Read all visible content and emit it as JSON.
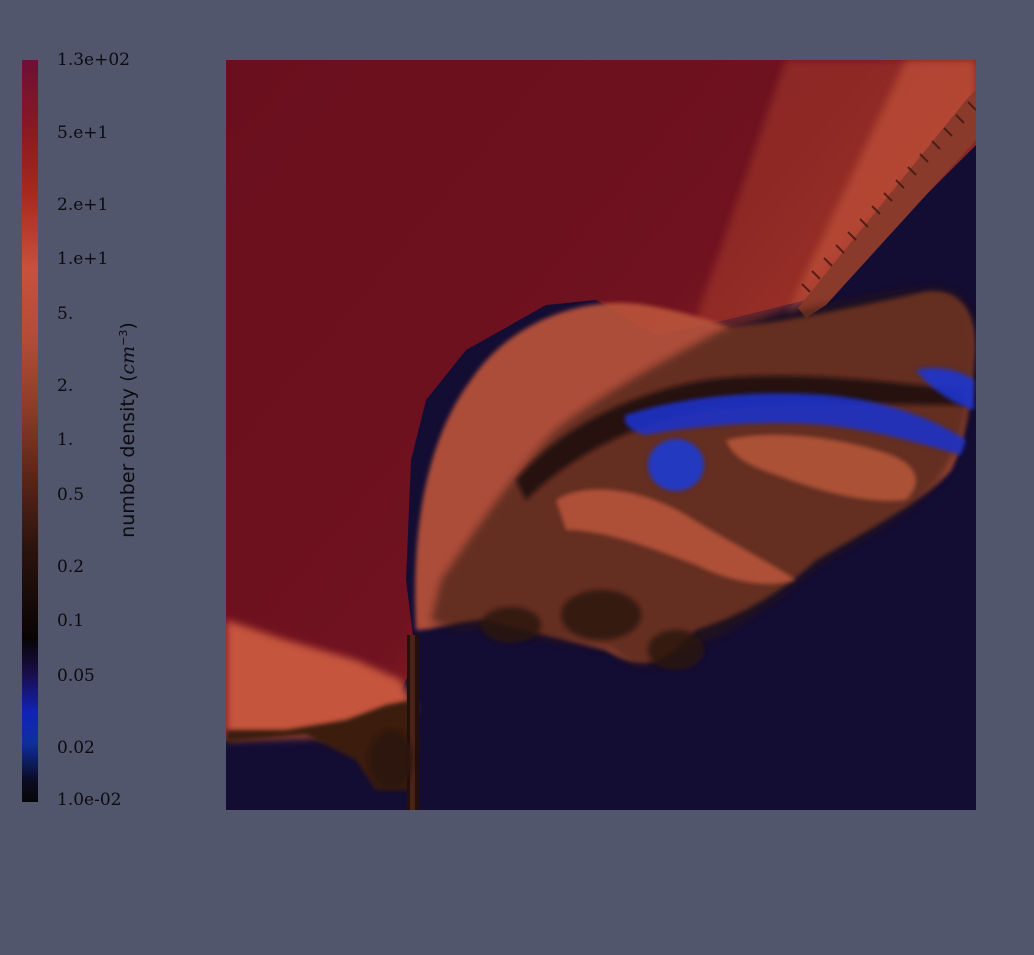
{
  "colorbar": {
    "title_text": "number density (",
    "title_unit": "cm",
    "title_exp": "−3",
    "title_close": ")",
    "ticks": [
      {
        "label": "1.3e+02"
      },
      {
        "label": "5.e+1"
      },
      {
        "label": "2.e+1"
      },
      {
        "label": "1.e+1"
      },
      {
        "label": "5."
      },
      {
        "label": "2."
      },
      {
        "label": "1."
      },
      {
        "label": "0.5"
      },
      {
        "label": "0.2"
      },
      {
        "label": "0.1"
      },
      {
        "label": "0.05"
      },
      {
        "label": "0.02"
      },
      {
        "label": "1.0e-02"
      }
    ]
  },
  "colors": {
    "background": "#51566c",
    "high_density": "#6e0f1c",
    "mid_density": "#c9553f",
    "low_density": "#140d33",
    "ambient_medium": "#1122b8"
  }
}
